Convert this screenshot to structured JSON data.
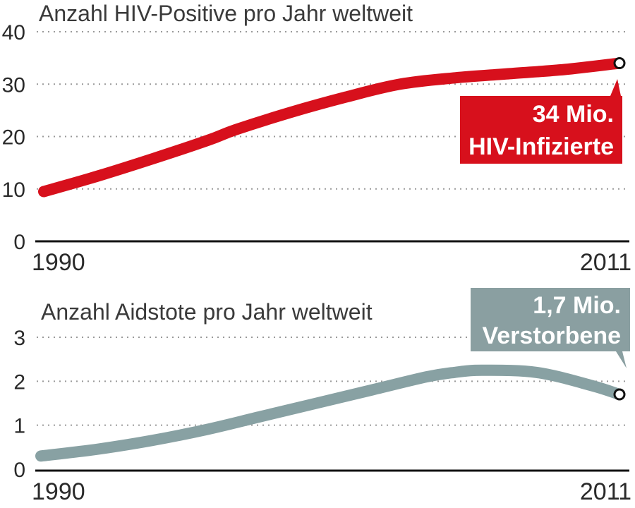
{
  "colors": {
    "hiv_line": "#d7101c",
    "deaths_line": "#88a1a3",
    "hiv_callout_bg": "#d7101c",
    "deaths_callout_bg": "#8a9fa1"
  },
  "chart_data": [
    {
      "type": "line",
      "title": "Anzahl HIV-Positive pro Jahr weltweit",
      "xlabel": "",
      "ylabel": "",
      "x_tick_labels": [
        "1990",
        "2011"
      ],
      "y_ticks": [
        0,
        10,
        20,
        30,
        40
      ],
      "ylim": [
        0,
        40
      ],
      "xlim": [
        1990,
        2011
      ],
      "grid": true,
      "series": [
        {
          "x": [
            1990,
            1992,
            1994,
            1996,
            1997,
            1999,
            2001,
            2003,
            2005,
            2007,
            2009,
            2011
          ],
          "y": [
            9.5,
            12.5,
            15.8,
            19.3,
            21.3,
            24.6,
            27.5,
            30.0,
            31.2,
            32.0,
            32.8,
            34.0
          ]
        }
      ],
      "callout": {
        "line1": "34 Mio.",
        "line2": "HIV-Infizierte"
      }
    },
    {
      "type": "line",
      "title": "Anzahl Aidstote pro Jahr weltweit",
      "xlabel": "",
      "ylabel": "",
      "x_tick_labels": [
        "1990",
        "2011"
      ],
      "y_ticks": [
        0,
        1,
        2,
        3
      ],
      "ylim": [
        0,
        3
      ],
      "xlim": [
        1990,
        2011
      ],
      "grid": true,
      "series": [
        {
          "x": [
            1990,
            1992,
            1994,
            1996,
            1998,
            2000,
            2002,
            2004,
            2005,
            2006,
            2008,
            2010,
            2011
          ],
          "y": [
            0.3,
            0.45,
            0.65,
            0.9,
            1.2,
            1.5,
            1.8,
            2.1,
            2.2,
            2.25,
            2.2,
            1.9,
            1.7
          ]
        }
      ],
      "callout": {
        "line1": "1,7 Mio.",
        "line2": "Verstorbene"
      }
    }
  ]
}
